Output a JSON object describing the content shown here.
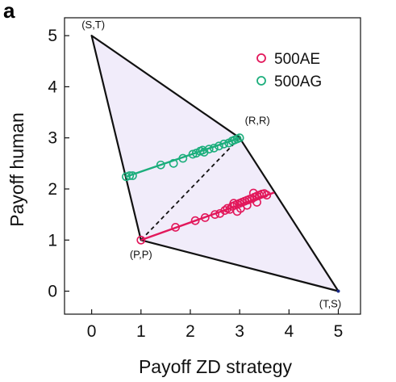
{
  "panel_label": "a",
  "chart_data": {
    "type": "scatter",
    "xlabel": "Payoff ZD strategy",
    "ylabel": "Payoff human",
    "xlim": [
      -0.55,
      5.45
    ],
    "ylim": [
      -0.45,
      5.35
    ],
    "xticks": [
      0,
      1,
      2,
      3,
      4,
      5
    ],
    "yticks": [
      0,
      1,
      2,
      3,
      4,
      5
    ],
    "grid": false,
    "legend_position": "top-right",
    "feasible_region": {
      "fill": "#f1ecfa",
      "vertices": [
        {
          "label": "(S,T)",
          "x": 0,
          "y": 5
        },
        {
          "label": "(R,R)",
          "x": 3,
          "y": 3
        },
        {
          "label": "(T,S)",
          "x": 5,
          "y": 0
        },
        {
          "label": "(P,P)",
          "x": 1,
          "y": 1
        }
      ]
    },
    "dashed_line": {
      "x": [
        1,
        3
      ],
      "y": [
        1,
        3
      ]
    },
    "series": [
      {
        "name": "500AE",
        "color": "#e2185b",
        "line": {
          "x": [
            1.0,
            3.7
          ],
          "y": [
            1.0,
            1.93
          ]
        },
        "points": [
          {
            "x": 1.0,
            "y": 1.0
          },
          {
            "x": 1.7,
            "y": 1.25
          },
          {
            "x": 2.1,
            "y": 1.38
          },
          {
            "x": 2.3,
            "y": 1.44
          },
          {
            "x": 2.5,
            "y": 1.5
          },
          {
            "x": 2.6,
            "y": 1.52
          },
          {
            "x": 2.7,
            "y": 1.58
          },
          {
            "x": 2.75,
            "y": 1.62
          },
          {
            "x": 2.8,
            "y": 1.6
          },
          {
            "x": 2.85,
            "y": 1.66
          },
          {
            "x": 2.9,
            "y": 1.68
          },
          {
            "x": 2.95,
            "y": 1.7
          },
          {
            "x": 3.0,
            "y": 1.72
          },
          {
            "x": 3.05,
            "y": 1.74
          },
          {
            "x": 3.1,
            "y": 1.76
          },
          {
            "x": 3.15,
            "y": 1.78
          },
          {
            "x": 3.2,
            "y": 1.8
          },
          {
            "x": 3.25,
            "y": 1.81
          },
          {
            "x": 3.3,
            "y": 1.84
          },
          {
            "x": 3.35,
            "y": 1.86
          },
          {
            "x": 3.4,
            "y": 1.88
          },
          {
            "x": 3.45,
            "y": 1.9
          },
          {
            "x": 3.5,
            "y": 1.91
          },
          {
            "x": 3.55,
            "y": 1.88
          },
          {
            "x": 2.88,
            "y": 1.72
          },
          {
            "x": 3.02,
            "y": 1.62
          },
          {
            "x": 3.15,
            "y": 1.68
          },
          {
            "x": 3.35,
            "y": 1.74
          },
          {
            "x": 2.95,
            "y": 1.56
          },
          {
            "x": 3.28,
            "y": 1.92
          }
        ]
      },
      {
        "name": "500AG",
        "color": "#1cae7c",
        "line": {
          "x": [
            0.7,
            3.0
          ],
          "y": [
            2.24,
            3.0
          ]
        },
        "points": [
          {
            "x": 0.7,
            "y": 2.24
          },
          {
            "x": 0.77,
            "y": 2.26
          },
          {
            "x": 0.83,
            "y": 2.26
          },
          {
            "x": 1.4,
            "y": 2.47
          },
          {
            "x": 1.66,
            "y": 2.5
          },
          {
            "x": 1.85,
            "y": 2.6
          },
          {
            "x": 2.05,
            "y": 2.68
          },
          {
            "x": 2.12,
            "y": 2.7
          },
          {
            "x": 2.2,
            "y": 2.74
          },
          {
            "x": 2.28,
            "y": 2.72
          },
          {
            "x": 2.38,
            "y": 2.78
          },
          {
            "x": 2.48,
            "y": 2.8
          },
          {
            "x": 2.58,
            "y": 2.84
          },
          {
            "x": 2.68,
            "y": 2.88
          },
          {
            "x": 2.78,
            "y": 2.9
          },
          {
            "x": 2.85,
            "y": 2.94
          },
          {
            "x": 2.9,
            "y": 2.96
          },
          {
            "x": 2.95,
            "y": 2.98
          },
          {
            "x": 3.0,
            "y": 3.0
          },
          {
            "x": 2.25,
            "y": 2.76
          }
        ]
      }
    ]
  }
}
